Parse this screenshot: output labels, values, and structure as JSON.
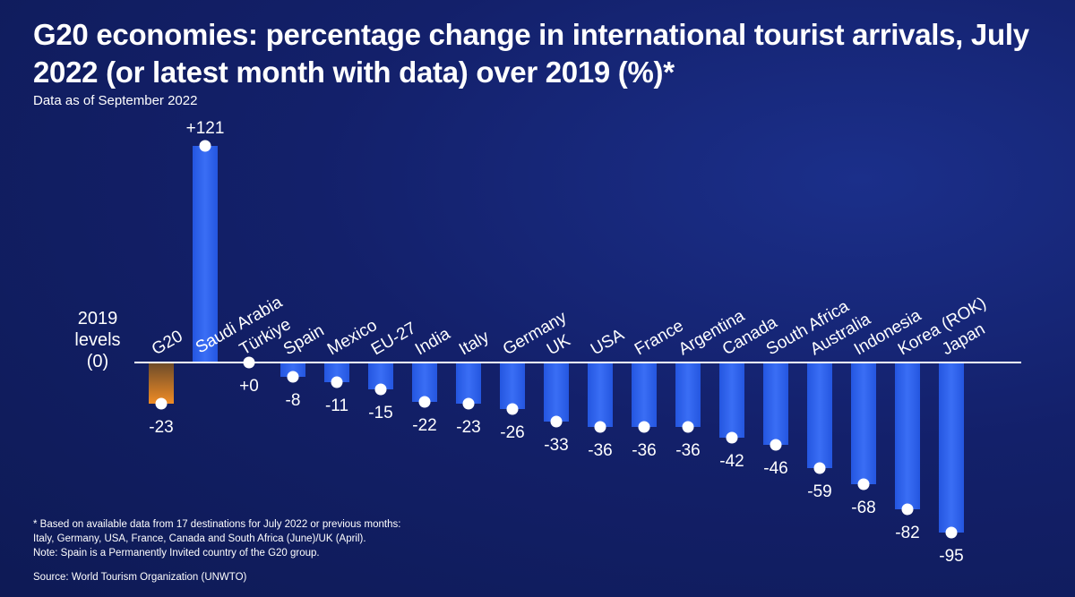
{
  "chart_data": {
    "type": "bar",
    "title": "G20 economies: percentage change in international tourist arrivals, July 2022 (or latest month with data) over 2019 (%)*",
    "subtitle": "Data as of September 2022",
    "zero_label_lines": [
      "2019",
      "levels",
      "(0)"
    ],
    "categories": [
      "G20",
      "Saudi Arabia",
      "Türkiye",
      "Spain",
      "Mexico",
      "EU-27",
      "India",
      "Italy",
      "Germany",
      "UK",
      "USA",
      "France",
      "Argentina",
      "Canada",
      "South Africa",
      "Australia",
      "Indonesia",
      "Korea (ROK)",
      "Japan"
    ],
    "values": [
      -23,
      121,
      0,
      -8,
      -11,
      -15,
      -22,
      -23,
      -26,
      -33,
      -36,
      -36,
      -36,
      -42,
      -46,
      -59,
      -68,
      -82,
      -95
    ],
    "value_labels": [
      "-23",
      "+121",
      "+0",
      "-8",
      "-11",
      "-15",
      "-22",
      "-23",
      "-26",
      "-33",
      "-36",
      "-36",
      "-36",
      "-42",
      "-46",
      "-59",
      "-68",
      "-82",
      "-95"
    ],
    "highlight_category": "G20",
    "ylim": [
      -100,
      125
    ],
    "colors": {
      "bar": "#2f62f0",
      "bar_highlight": "#e08a2e",
      "axis": "#ffffff",
      "marker": "#ffffff"
    }
  },
  "footnote_lines": [
    "* Based on available data from 17 destinations for July 2022 or previous months:",
    "Italy, Germany, USA, France, Canada and South Africa (June)/UK (April).",
    "Note: Spain is a Permanently Invited country of the G20 group."
  ],
  "source": "Source: World Tourism Organization (UNWTO)"
}
